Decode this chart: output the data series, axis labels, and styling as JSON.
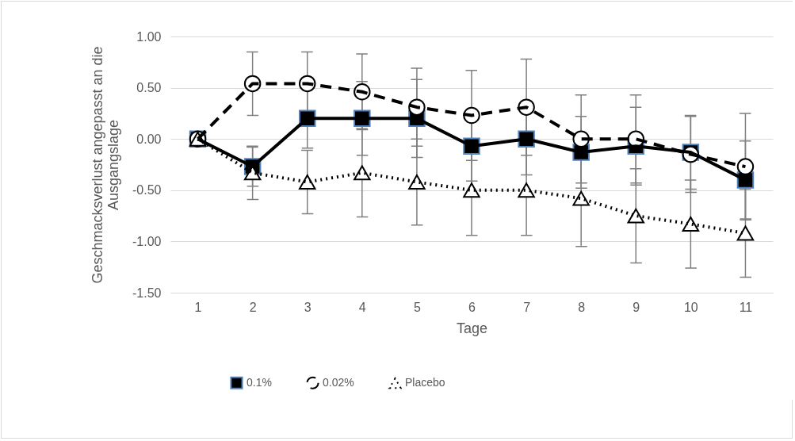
{
  "chart_data": {
    "type": "line",
    "xlabel": "Tage",
    "ylabel": "Geschmacksverlust angepasst an die Ausgangslage",
    "categories": [
      "1",
      "2",
      "3",
      "4",
      "5",
      "6",
      "7",
      "8",
      "9",
      "10",
      "11"
    ],
    "series": [
      {
        "name": "0.1%",
        "color": "#000000",
        "marker": "square",
        "line_style": "solid",
        "values": [
          0,
          -0.27,
          0.2,
          0.2,
          0.2,
          -0.07,
          0,
          -0.13,
          -0.07,
          -0.13,
          -0.4
        ],
        "errors": [
          null,
          0.19,
          0.29,
          0.36,
          0.38,
          0.34,
          0.35,
          0.35,
          0.38,
          0.36,
          0.38
        ]
      },
      {
        "name": "0.02%",
        "color": "#000000",
        "marker": "circle",
        "line_style": "dashed",
        "values": [
          0,
          0.54,
          0.54,
          0.46,
          0.31,
          0.23,
          0.31,
          0,
          0,
          -0.15,
          -0.27
        ],
        "errors": [
          null,
          0.31,
          0.31,
          0.37,
          0.38,
          0.44,
          0.47,
          0.43,
          0.43,
          0.37,
          0.52
        ]
      },
      {
        "name": "Placebo",
        "color": "#000000",
        "marker": "triangle",
        "line_style": "dotted",
        "values": [
          0,
          -0.33,
          -0.42,
          -0.33,
          -0.42,
          -0.5,
          -0.5,
          -0.58,
          -0.75,
          -0.83,
          -0.92
        ],
        "errors": [
          null,
          0.26,
          0.31,
          0.43,
          0.42,
          0.44,
          0.44,
          0.47,
          0.46,
          0.43,
          0.43
        ]
      }
    ],
    "ylim": [
      -1.5,
      1
    ],
    "yticks": [
      {
        "value": -1.5,
        "label": "-1.50"
      },
      {
        "value": -1,
        "label": "-1.00"
      },
      {
        "value": -0.5,
        "label": "-0.50"
      },
      {
        "value": 0,
        "label": "0.00"
      },
      {
        "value": 0.5,
        "label": "0.50"
      },
      {
        "value": 1,
        "label": "1.00"
      }
    ],
    "grid": "y",
    "legend": "bottom"
  }
}
